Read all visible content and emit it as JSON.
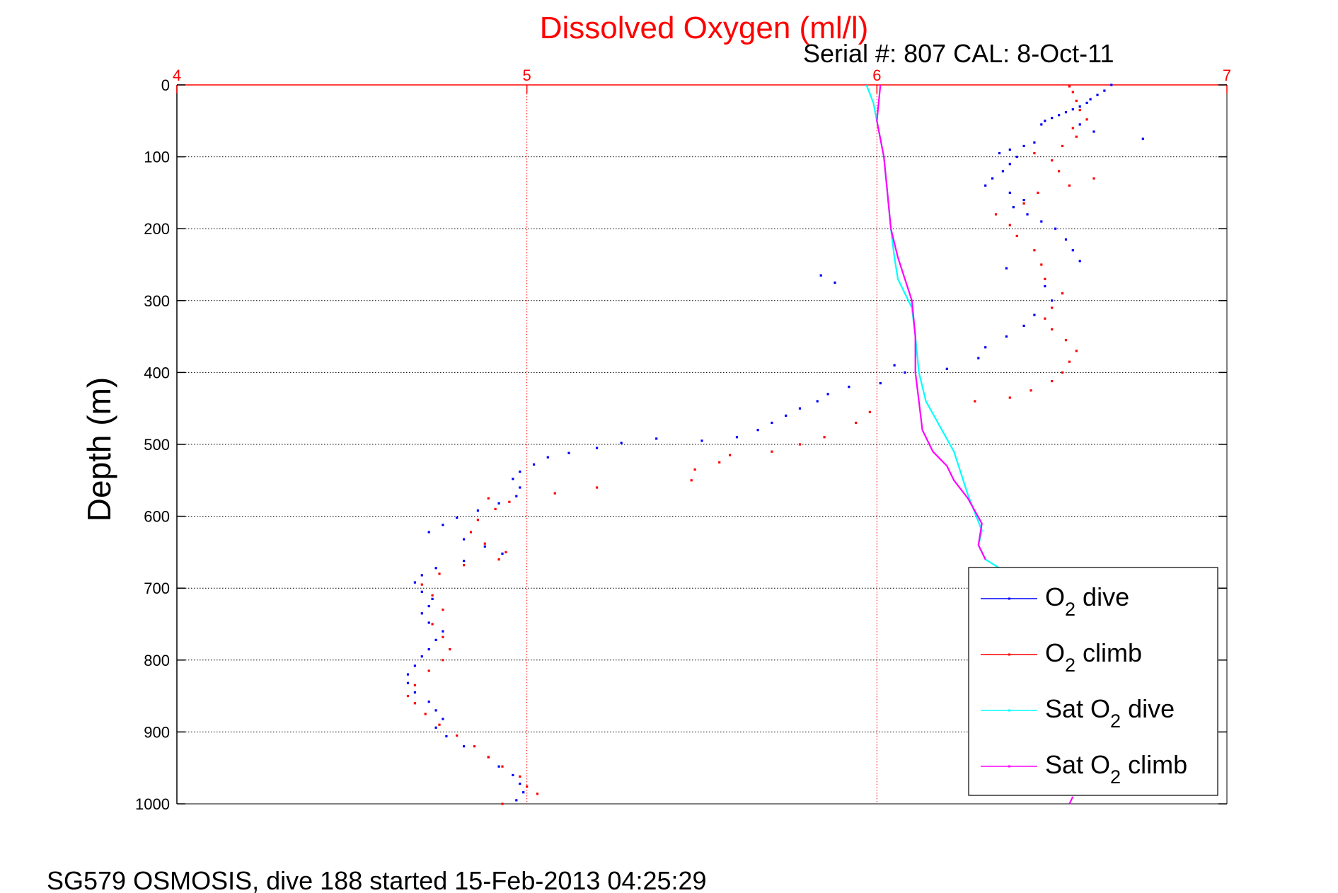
{
  "chart_data": {
    "type": "scatter",
    "title": "Dissolved Oxygen (ml/l)",
    "subtitle": "Serial #: 807  CAL: 8-Oct-11",
    "footer": "SG579 OSMOSIS, dive 188 started 15-Feb-2013 04:25:29",
    "xlabel": "",
    "ylabel": "Depth (m)",
    "xlim": [
      4,
      7
    ],
    "ylim": [
      0,
      1000
    ],
    "y_reversed": true,
    "x_axis_position": "top",
    "x_ticks": [
      4,
      5,
      6,
      7
    ],
    "y_ticks": [
      0,
      100,
      200,
      300,
      400,
      500,
      600,
      700,
      800,
      900,
      1000
    ],
    "grid": true,
    "legend_position": "bottom-right",
    "colors": {
      "title": "#ff0000",
      "x_axis": "#ff0000",
      "grid": "#000000"
    },
    "series": [
      {
        "name": "O2 dive",
        "legend_parts": [
          "O",
          "2",
          " dive"
        ],
        "color": "#0000ff",
        "style": "points",
        "points": [
          [
            6.67,
            0
          ],
          [
            6.65,
            8
          ],
          [
            6.63,
            14
          ],
          [
            6.61,
            20
          ],
          [
            6.6,
            25
          ],
          [
            6.58,
            30
          ],
          [
            6.56,
            34
          ],
          [
            6.54,
            38
          ],
          [
            6.52,
            42
          ],
          [
            6.5,
            46
          ],
          [
            6.48,
            50
          ],
          [
            6.47,
            55
          ],
          [
            6.58,
            55
          ],
          [
            6.62,
            65
          ],
          [
            6.76,
            75
          ],
          [
            6.45,
            80
          ],
          [
            6.42,
            85
          ],
          [
            6.38,
            90
          ],
          [
            6.35,
            95
          ],
          [
            6.4,
            100
          ],
          [
            6.38,
            110
          ],
          [
            6.36,
            120
          ],
          [
            6.33,
            130
          ],
          [
            6.31,
            140
          ],
          [
            6.38,
            150
          ],
          [
            6.42,
            160
          ],
          [
            6.39,
            170
          ],
          [
            6.43,
            180
          ],
          [
            6.47,
            190
          ],
          [
            6.51,
            200
          ],
          [
            6.54,
            215
          ],
          [
            6.56,
            230
          ],
          [
            6.58,
            245
          ],
          [
            5.84,
            265
          ],
          [
            5.88,
            275
          ],
          [
            6.37,
            255
          ],
          [
            6.48,
            280
          ],
          [
            6.5,
            300
          ],
          [
            6.45,
            320
          ],
          [
            6.42,
            335
          ],
          [
            6.37,
            350
          ],
          [
            6.31,
            365
          ],
          [
            6.29,
            380
          ],
          [
            6.2,
            395
          ],
          [
            6.05,
            390
          ],
          [
            6.08,
            400
          ],
          [
            6.01,
            415
          ],
          [
            5.92,
            420
          ],
          [
            5.86,
            430
          ],
          [
            5.83,
            440
          ],
          [
            5.78,
            450
          ],
          [
            5.74,
            460
          ],
          [
            5.7,
            470
          ],
          [
            5.66,
            480
          ],
          [
            5.6,
            490
          ],
          [
            5.5,
            495
          ],
          [
            5.37,
            492
          ],
          [
            5.27,
            498
          ],
          [
            5.2,
            505
          ],
          [
            5.12,
            512
          ],
          [
            5.06,
            518
          ],
          [
            5.02,
            528
          ],
          [
            4.98,
            538
          ],
          [
            4.96,
            548
          ],
          [
            4.98,
            560
          ],
          [
            4.97,
            572
          ],
          [
            4.92,
            582
          ],
          [
            4.86,
            592
          ],
          [
            4.8,
            602
          ],
          [
            4.76,
            612
          ],
          [
            4.72,
            622
          ],
          [
            4.82,
            632
          ],
          [
            4.88,
            642
          ],
          [
            4.93,
            652
          ],
          [
            4.82,
            662
          ],
          [
            4.74,
            672
          ],
          [
            4.7,
            682
          ],
          [
            4.68,
            692
          ],
          [
            4.7,
            705
          ],
          [
            4.73,
            715
          ],
          [
            4.72,
            725
          ],
          [
            4.7,
            735
          ],
          [
            4.72,
            748
          ],
          [
            4.76,
            760
          ],
          [
            4.74,
            772
          ],
          [
            4.72,
            785
          ],
          [
            4.7,
            795
          ],
          [
            4.68,
            808
          ],
          [
            4.66,
            820
          ],
          [
            4.66,
            832
          ],
          [
            4.68,
            845
          ],
          [
            4.72,
            858
          ],
          [
            4.74,
            870
          ],
          [
            4.76,
            882
          ],
          [
            4.74,
            894
          ],
          [
            4.77,
            906
          ],
          [
            4.82,
            920
          ],
          [
            4.89,
            935
          ],
          [
            4.92,
            948
          ],
          [
            4.96,
            960
          ],
          [
            4.98,
            972
          ],
          [
            4.99,
            984
          ],
          [
            4.97,
            995
          ]
        ]
      },
      {
        "name": "O2 climb",
        "legend_parts": [
          "O",
          "2",
          " climb"
        ],
        "color": "#ff0000",
        "style": "points",
        "points": [
          [
            4.93,
            1000
          ],
          [
            5.03,
            986
          ],
          [
            5.0,
            976
          ],
          [
            4.98,
            962
          ],
          [
            4.93,
            948
          ],
          [
            4.89,
            935
          ],
          [
            4.85,
            920
          ],
          [
            4.8,
            905
          ],
          [
            4.75,
            890
          ],
          [
            4.71,
            875
          ],
          [
            4.68,
            860
          ],
          [
            4.66,
            850
          ],
          [
            4.68,
            835
          ],
          [
            4.72,
            815
          ],
          [
            4.76,
            800
          ],
          [
            4.78,
            785
          ],
          [
            4.76,
            768
          ],
          [
            4.73,
            750
          ],
          [
            4.76,
            730
          ],
          [
            4.73,
            710
          ],
          [
            4.7,
            695
          ],
          [
            4.75,
            680
          ],
          [
            4.82,
            668
          ],
          [
            4.92,
            660
          ],
          [
            4.94,
            650
          ],
          [
            4.88,
            638
          ],
          [
            4.84,
            622
          ],
          [
            4.86,
            605
          ],
          [
            4.91,
            590
          ],
          [
            4.95,
            580
          ],
          [
            4.89,
            575
          ],
          [
            5.08,
            568
          ],
          [
            5.2,
            560
          ],
          [
            5.47,
            550
          ],
          [
            5.48,
            535
          ],
          [
            5.55,
            525
          ],
          [
            5.58,
            515
          ],
          [
            5.7,
            510
          ],
          [
            5.78,
            500
          ],
          [
            5.85,
            490
          ],
          [
            5.94,
            470
          ],
          [
            5.98,
            455
          ],
          [
            6.28,
            440
          ],
          [
            6.38,
            435
          ],
          [
            6.44,
            425
          ],
          [
            6.5,
            412
          ],
          [
            6.53,
            400
          ],
          [
            6.55,
            385
          ],
          [
            6.57,
            370
          ],
          [
            6.54,
            355
          ],
          [
            6.5,
            340
          ],
          [
            6.48,
            325
          ],
          [
            6.5,
            310
          ],
          [
            6.53,
            290
          ],
          [
            6.48,
            270
          ],
          [
            6.47,
            250
          ],
          [
            6.45,
            230
          ],
          [
            6.4,
            210
          ],
          [
            6.38,
            195
          ],
          [
            6.34,
            180
          ],
          [
            6.42,
            165
          ],
          [
            6.46,
            150
          ],
          [
            6.55,
            140
          ],
          [
            6.62,
            130
          ],
          [
            6.52,
            120
          ],
          [
            6.5,
            105
          ],
          [
            6.45,
            95
          ],
          [
            6.53,
            85
          ],
          [
            6.57,
            72
          ],
          [
            6.56,
            60
          ],
          [
            6.6,
            48
          ],
          [
            6.58,
            35
          ],
          [
            6.57,
            22
          ],
          [
            6.56,
            10
          ],
          [
            6.55,
            2
          ]
        ]
      },
      {
        "name": "Sat O2 dive",
        "legend_parts": [
          "Sat O",
          "2",
          " dive"
        ],
        "color": "#00ffff",
        "style": "line",
        "points": [
          [
            5.97,
            0
          ],
          [
            5.99,
            25
          ],
          [
            6.0,
            50
          ],
          [
            6.02,
            100
          ],
          [
            6.03,
            150
          ],
          [
            6.04,
            200
          ],
          [
            6.05,
            240
          ],
          [
            6.06,
            270
          ],
          [
            6.08,
            290
          ],
          [
            6.1,
            310
          ],
          [
            6.11,
            350
          ],
          [
            6.12,
            400
          ],
          [
            6.14,
            440
          ],
          [
            6.18,
            475
          ],
          [
            6.22,
            510
          ],
          [
            6.24,
            540
          ],
          [
            6.26,
            570
          ],
          [
            6.28,
            595
          ],
          [
            6.3,
            620
          ],
          [
            6.29,
            640
          ],
          [
            6.31,
            660
          ],
          [
            6.35,
            672
          ]
        ]
      },
      {
        "name": "Sat O2 climb",
        "legend_parts": [
          "Sat O",
          "2",
          " climb"
        ],
        "color": "#ff00ff",
        "style": "line",
        "points": [
          [
            6.01,
            0
          ],
          [
            6.0,
            50
          ],
          [
            6.02,
            100
          ],
          [
            6.03,
            150
          ],
          [
            6.04,
            200
          ],
          [
            6.06,
            240
          ],
          [
            6.08,
            270
          ],
          [
            6.1,
            300
          ],
          [
            6.11,
            350
          ],
          [
            6.11,
            400
          ],
          [
            6.12,
            440
          ],
          [
            6.13,
            480
          ],
          [
            6.16,
            510
          ],
          [
            6.2,
            530
          ],
          [
            6.22,
            550
          ],
          [
            6.26,
            575
          ],
          [
            6.3,
            610
          ],
          [
            6.29,
            640
          ],
          [
            6.31,
            660
          ]
        ],
        "tail_points": [
          [
            6.56,
            990
          ],
          [
            6.55,
            1000
          ]
        ]
      }
    ]
  }
}
